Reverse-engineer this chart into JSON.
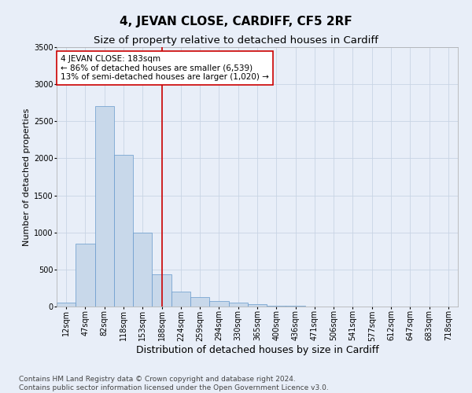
{
  "title": "4, JEVAN CLOSE, CARDIFF, CF5 2RF",
  "subtitle": "Size of property relative to detached houses in Cardiff",
  "xlabel": "Distribution of detached houses by size in Cardiff",
  "ylabel": "Number of detached properties",
  "categories": [
    "12sqm",
    "47sqm",
    "82sqm",
    "118sqm",
    "153sqm",
    "188sqm",
    "224sqm",
    "259sqm",
    "294sqm",
    "330sqm",
    "365sqm",
    "400sqm",
    "436sqm",
    "471sqm",
    "506sqm",
    "541sqm",
    "577sqm",
    "612sqm",
    "647sqm",
    "683sqm",
    "718sqm"
  ],
  "values": [
    50,
    850,
    2700,
    2050,
    1000,
    430,
    200,
    130,
    70,
    50,
    30,
    10,
    8,
    5,
    3,
    2,
    1,
    1,
    0,
    0,
    0
  ],
  "bar_color": "#c8d8ea",
  "bar_edge_color": "#6699cc",
  "vline_x": 5,
  "vline_color": "#cc0000",
  "annotation_text": "4 JEVAN CLOSE: 183sqm\n← 86% of detached houses are smaller (6,539)\n13% of semi-detached houses are larger (1,020) →",
  "annotation_box_color": "#ffffff",
  "annotation_box_edge": "#cc0000",
  "ylim": [
    0,
    3500
  ],
  "yticks": [
    0,
    500,
    1000,
    1500,
    2000,
    2500,
    3000,
    3500
  ],
  "grid_color": "#c8d4e4",
  "background_color": "#e8eef8",
  "footer": "Contains HM Land Registry data © Crown copyright and database right 2024.\nContains public sector information licensed under the Open Government Licence v3.0.",
  "title_fontsize": 11,
  "subtitle_fontsize": 9.5,
  "xlabel_fontsize": 9,
  "ylabel_fontsize": 8,
  "tick_fontsize": 7,
  "annotation_fontsize": 7.5,
  "footer_fontsize": 6.5
}
